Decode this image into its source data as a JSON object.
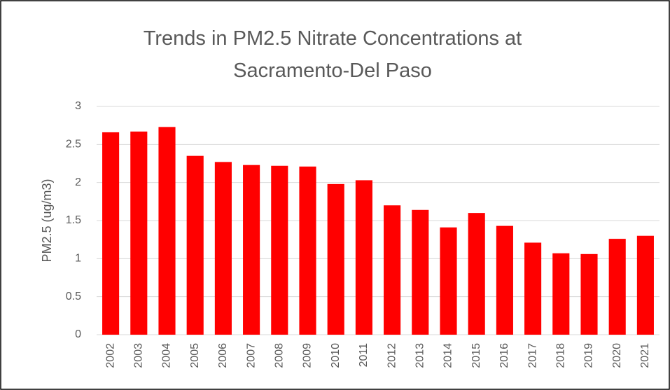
{
  "chart_data": {
    "type": "bar",
    "title": "Trends in PM2.5 Nitrate Concentrations at Sacramento-Del Paso",
    "y_label": "PM2.5 (ug/m3)",
    "categories": [
      "2002",
      "2003",
      "2004",
      "2005",
      "2006",
      "2007",
      "2008",
      "2009",
      "2010",
      "2011",
      "2012",
      "2013",
      "2014",
      "2015",
      "2016",
      "2017",
      "2018",
      "2019",
      "2020",
      "2021"
    ],
    "values": [
      2.66,
      2.67,
      2.73,
      2.35,
      2.27,
      2.23,
      2.22,
      2.21,
      1.98,
      2.03,
      1.7,
      1.64,
      1.41,
      1.6,
      1.43,
      1.21,
      1.07,
      1.06,
      1.26,
      1.3
    ],
    "color": "#ff0000",
    "ylim": [
      0,
      3
    ],
    "yticks": [
      0,
      0.5,
      1,
      1.5,
      2,
      2.5,
      3
    ],
    "grid": true
  }
}
